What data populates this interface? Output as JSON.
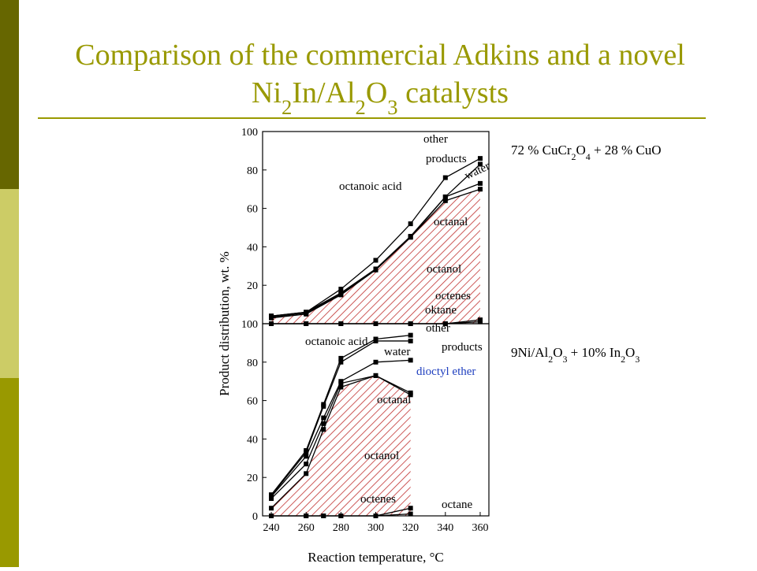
{
  "slide": {
    "title_line1": "Comparison of the commercial Adkins and a novel",
    "title_line2": "Ni2In/Al2O3 catalysts"
  },
  "chart_data": [
    {
      "type": "line",
      "caption": "72 % CuCr2O4 + 28 % CuO",
      "x": [
        240,
        260,
        280,
        300,
        320,
        340,
        360
      ],
      "xlim": [
        235,
        365
      ],
      "ylim": [
        0,
        100
      ],
      "yticks": [
        20,
        40,
        60,
        80,
        100
      ],
      "series": [
        {
          "name": "octanol",
          "color": "#000000",
          "fill": "hatched",
          "values": [
            3,
            5,
            15,
            28,
            45,
            64,
            70
          ]
        },
        {
          "name": "octanal",
          "color": "#000000",
          "values": [
            3.5,
            5.5,
            15.5,
            28,
            45,
            66,
            73
          ]
        },
        {
          "name": "water",
          "color": "#000000",
          "values": [
            4,
            6,
            16,
            28.5,
            45.5,
            66,
            83
          ]
        },
        {
          "name": "other products",
          "color": "#000000",
          "values": [
            4,
            6,
            18,
            33,
            52,
            76,
            86
          ]
        },
        {
          "name": "octenes",
          "color": "#000000",
          "values": [
            0,
            0,
            0,
            0,
            0,
            0,
            2
          ]
        },
        {
          "name": "oktane",
          "color": "#000000",
          "values": [
            0,
            0,
            0,
            0,
            0,
            0,
            1
          ]
        }
      ],
      "annotations": [
        "octanoic acid",
        "other",
        "products",
        "water",
        "octanal",
        "octanol",
        "octenes",
        "oktane"
      ]
    },
    {
      "type": "line",
      "caption": "9Ni/Al2O3 + 10% In2O3",
      "x": [
        240,
        260,
        270,
        280,
        300,
        320
      ],
      "xlim": [
        235,
        365
      ],
      "ylim": [
        0,
        100
      ],
      "yticks": [
        0,
        20,
        40,
        60,
        80,
        100
      ],
      "xticks": [
        240,
        260,
        280,
        300,
        320,
        340,
        360
      ],
      "x_label": "Reaction temperature, °C",
      "y_label": "Product distribution, wt. %",
      "series": [
        {
          "name": "octanol",
          "color": "#000000",
          "fill": "hatched",
          "values": [
            4,
            22,
            45,
            67,
            73,
            63
          ]
        },
        {
          "name": "octanal",
          "color": "#000000",
          "values": [
            9,
            27,
            48,
            69,
            73,
            64
          ]
        },
        {
          "name": "dioctyl ether",
          "color": "#000000",
          "values": [
            10,
            31,
            51,
            70,
            80,
            81
          ]
        },
        {
          "name": "water",
          "color": "#000000",
          "values": [
            10.5,
            33,
            57,
            80,
            91,
            91
          ]
        },
        {
          "name": "other products",
          "color": "#000000",
          "values": [
            11,
            34,
            58,
            82,
            92,
            94
          ]
        },
        {
          "name": "octenes",
          "color": "#000000",
          "values": [
            0,
            0,
            0,
            0,
            0,
            1
          ]
        },
        {
          "name": "octane",
          "color": "#000000",
          "values": [
            0,
            0,
            0,
            0,
            0,
            4
          ]
        }
      ],
      "annotations": [
        "octanoic acid",
        "other",
        "products",
        "water",
        "dioctyl ether",
        "octanal",
        "octanol",
        "octenes",
        "octane"
      ]
    }
  ]
}
